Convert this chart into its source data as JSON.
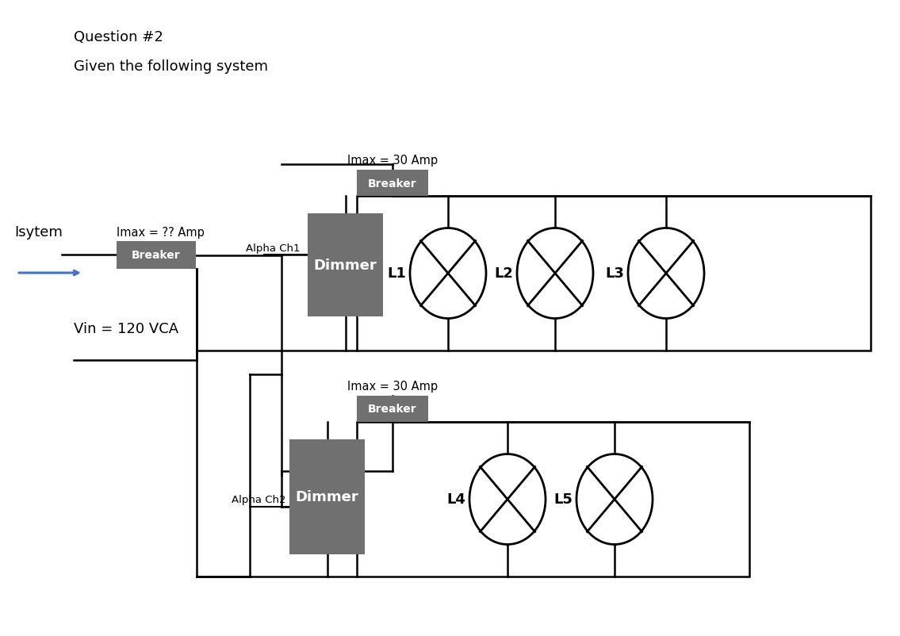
{
  "title_line1": "Question #2",
  "title_line2": "Given the following system",
  "bg_color": "#ffffff",
  "gray_color": "#707070",
  "black": "#000000",
  "blue_arrow_color": "#4472c4",
  "breaker_main_label": "Imax = ?? Amp",
  "breaker_main_box": "Breaker",
  "isytem_label": "Isytem",
  "vin_label": "Vin = 120 VCA",
  "ch1_label": "Alpha Ch1",
  "ch1_dimmer": "Dimmer",
  "ch2_label": "Alpha Ch2",
  "ch2_dimmer": "Dimmer",
  "top_breaker_label": "Imax = 30 Amp",
  "top_breaker_box": "Breaker",
  "bot_breaker_label": "Imax = 30 Amp",
  "bot_breaker_box": "Breaker",
  "lights_top": [
    "L1",
    "L2",
    "L3"
  ],
  "lights_bot": [
    "L4",
    "L5"
  ]
}
